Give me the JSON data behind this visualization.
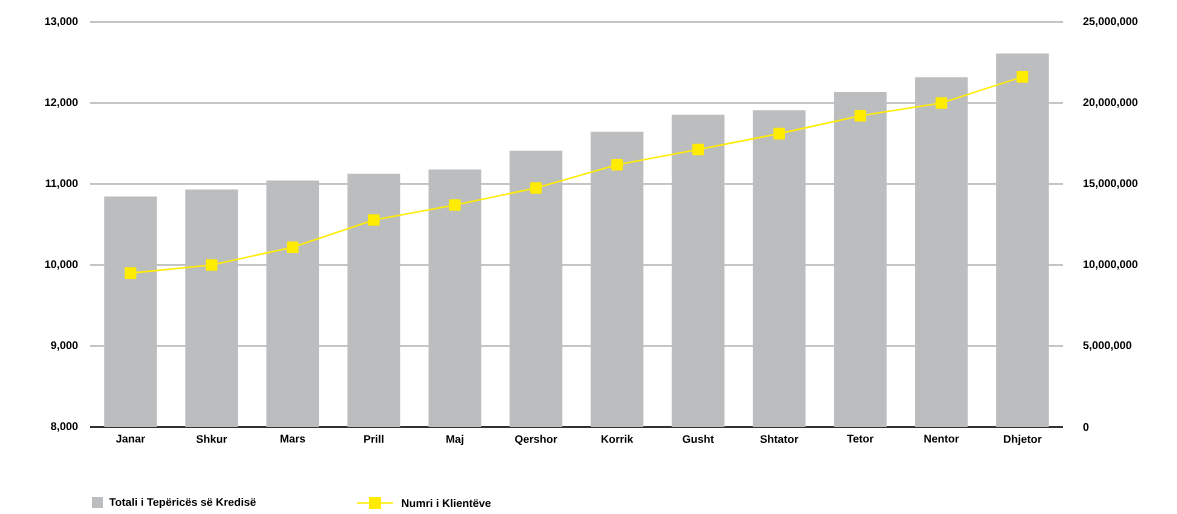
{
  "chart_data": {
    "type": "bar",
    "categories": [
      "Janar",
      "Shkur",
      "Mars",
      "Prill",
      "Maj",
      "Qershor",
      "Korrik",
      "Gusht",
      "Shtator",
      "Tetor",
      "Nentor",
      "Dhjetor"
    ],
    "series": [
      {
        "name": "Totali i Tepëricës së Kredisë",
        "color": "#bcbdbf",
        "axis": "y2",
        "values": [
          14230000,
          14660000,
          15210000,
          15640000,
          15890000,
          17050000,
          18220000,
          19270000,
          19550000,
          20680000,
          21590000,
          23060000
        ]
      },
      {
        "name": "Numri i Klientëve",
        "type": "line",
        "color": "#ffec00",
        "values": [
          9900,
          10000,
          10220,
          10555,
          10740,
          10950,
          11237,
          11425,
          11622,
          11843,
          12000,
          12323
        ]
      }
    ],
    "ylim": [
      8000,
      13000
    ],
    "yticks": [
      {
        "value": 8000,
        "label": "8,000"
      },
      {
        "value": 9000,
        "label": "9,000"
      },
      {
        "value": 10000,
        "label": "10,000"
      },
      {
        "value": 11000,
        "label": "11,000"
      },
      {
        "value": 12000,
        "label": "12,000"
      },
      {
        "value": 13000,
        "label": "13,000"
      }
    ],
    "y2lim": [
      0,
      25000000
    ],
    "y2ticks": [
      0,
      {
        "value": 5000000,
        "label": "5,000,000"
      },
      {
        "value": 10000000,
        "label": "10,000,000"
      },
      {
        "value": 15000000,
        "label": "15,000,000"
      },
      {
        "value": 20000000,
        "label": "20,000,000"
      },
      {
        "value": 25000000,
        "label": "25,000,000"
      }
    ],
    "grid": "y",
    "legend": "bottom left",
    "marker": "square"
  }
}
